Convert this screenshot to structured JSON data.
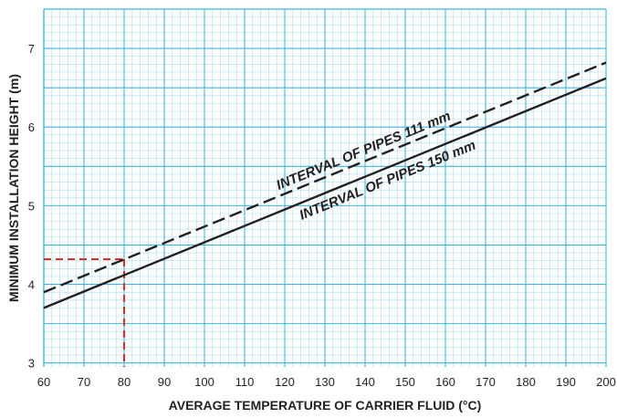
{
  "colors": {
    "grid_minor": "#a9dcf2",
    "grid_major": "#3fb6e6",
    "line": "#231f20",
    "marker": "#d92c2c"
  },
  "chart_data": {
    "type": "line",
    "title": "",
    "xlabel": "AVERAGE TEMPERATURE OF CARRIER FLUID (°C)",
    "ylabel": "MINIMUM INSTALLATION HEIGHT (m)",
    "xlim": [
      60,
      200
    ],
    "ylim": [
      2.95,
      7.5
    ],
    "x_ticks": [
      60,
      70,
      80,
      90,
      100,
      110,
      120,
      130,
      140,
      150,
      160,
      170,
      180,
      190,
      200
    ],
    "y_ticks": [
      3,
      4,
      5,
      6,
      7
    ],
    "grid": true,
    "series": [
      {
        "name": "INTERVAL OF PIPES 111 mm",
        "style": "dashed",
        "x": [
          60,
          200
        ],
        "y": [
          3.9,
          6.82
        ]
      },
      {
        "name": "INTERVAL OF PIPES 150 mm",
        "style": "solid",
        "x": [
          60,
          200
        ],
        "y": [
          3.7,
          6.62
        ]
      }
    ],
    "annotations": [
      {
        "type": "reference-lines",
        "style": "dashed",
        "color": "red",
        "x": 80,
        "y": 4.32
      }
    ]
  }
}
